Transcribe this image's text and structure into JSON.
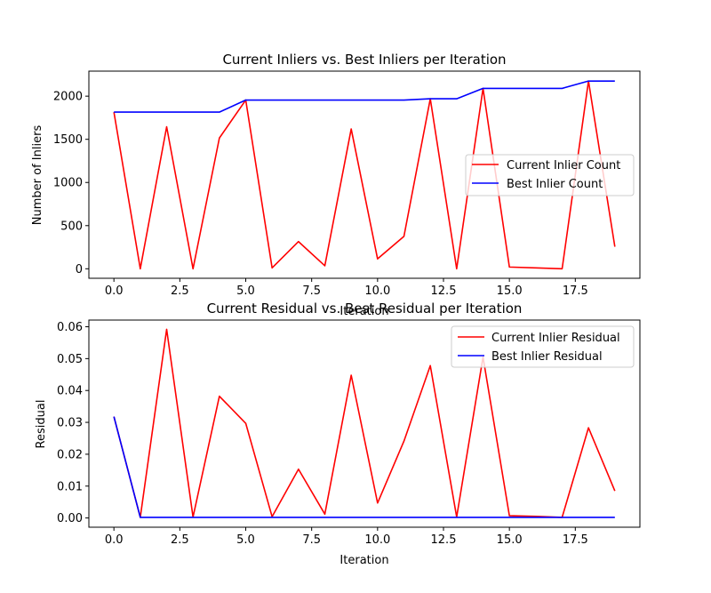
{
  "chart_data": [
    {
      "type": "line",
      "title": "Current Inliers vs. Best Inliers per Iteration",
      "xlabel": "Iteration",
      "ylabel": "Number of Inliers",
      "xlim": [
        -0.95,
        19.95
      ],
      "ylim": [
        -110,
        2290
      ],
      "xticks": [
        0,
        2.5,
        5,
        7.5,
        10,
        12.5,
        15,
        17.5
      ],
      "xtick_labels": [
        "0.0",
        "2.5",
        "5.0",
        "7.5",
        "10.0",
        "12.5",
        "15.0",
        "17.5"
      ],
      "yticks": [
        0,
        500,
        1000,
        1500,
        2000
      ],
      "ytick_labels": [
        "0",
        "500",
        "1000",
        "1500",
        "2000"
      ],
      "legend_position": "center-right",
      "grid": false,
      "x": [
        0,
        1,
        2,
        3,
        4,
        5,
        6,
        7,
        8,
        9,
        10,
        11,
        12,
        13,
        14,
        15,
        16,
        17,
        18,
        19
      ],
      "series": [
        {
          "name": "Current Inlier Count",
          "color": "#ff0000",
          "values": [
            1815,
            0,
            1645,
            0,
            1515,
            1955,
            10,
            315,
            35,
            1620,
            115,
            375,
            1970,
            0,
            2090,
            20,
            10,
            0,
            2175,
            255
          ]
        },
        {
          "name": "Best Inlier Count",
          "color": "#0000ff",
          "values": [
            1815,
            1815,
            1815,
            1815,
            1815,
            1955,
            1955,
            1955,
            1955,
            1955,
            1955,
            1955,
            1970,
            1970,
            2090,
            2090,
            2090,
            2090,
            2175,
            2175
          ]
        }
      ]
    },
    {
      "type": "line",
      "title": "Current Residual vs. Best Residual per Iteration",
      "xlabel": "Iteration",
      "ylabel": "Residual",
      "xlim": [
        -0.95,
        19.95
      ],
      "ylim": [
        -0.0029,
        0.0621
      ],
      "xticks": [
        0,
        2.5,
        5,
        7.5,
        10,
        12.5,
        15,
        17.5
      ],
      "xtick_labels": [
        "0.0",
        "2.5",
        "5.0",
        "7.5",
        "10.0",
        "12.5",
        "15.0",
        "17.5"
      ],
      "yticks": [
        0,
        0.01,
        0.02,
        0.03,
        0.04,
        0.05,
        0.06
      ],
      "ytick_labels": [
        "0.00",
        "0.01",
        "0.02",
        "0.03",
        "0.04",
        "0.05",
        "0.06"
      ],
      "legend_position": "top-right",
      "grid": false,
      "x": [
        0,
        1,
        2,
        3,
        4,
        5,
        6,
        7,
        8,
        9,
        10,
        11,
        12,
        13,
        14,
        15,
        16,
        17,
        18,
        19
      ],
      "series": [
        {
          "name": "Current Inlier Residual",
          "color": "#ff0000",
          "values": [
            0.0318,
            0.0002,
            0.0592,
            0.0003,
            0.0382,
            0.0297,
            0.0004,
            0.0153,
            0.0012,
            0.0448,
            0.0047,
            0.0241,
            0.0478,
            0.0003,
            0.0505,
            0.0007,
            0.0005,
            0.0002,
            0.0283,
            0.0085
          ]
        },
        {
          "name": "Best Inlier Residual",
          "color": "#0000ff",
          "values": [
            0.0318,
            0.0002,
            0.0002,
            0.0002,
            0.0002,
            0.0002,
            0.0002,
            0.0002,
            0.0002,
            0.0002,
            0.0002,
            0.0002,
            0.0002,
            0.0002,
            0.0002,
            0.0002,
            0.0002,
            0.0002,
            0.0002,
            0.0002
          ]
        }
      ]
    }
  ]
}
